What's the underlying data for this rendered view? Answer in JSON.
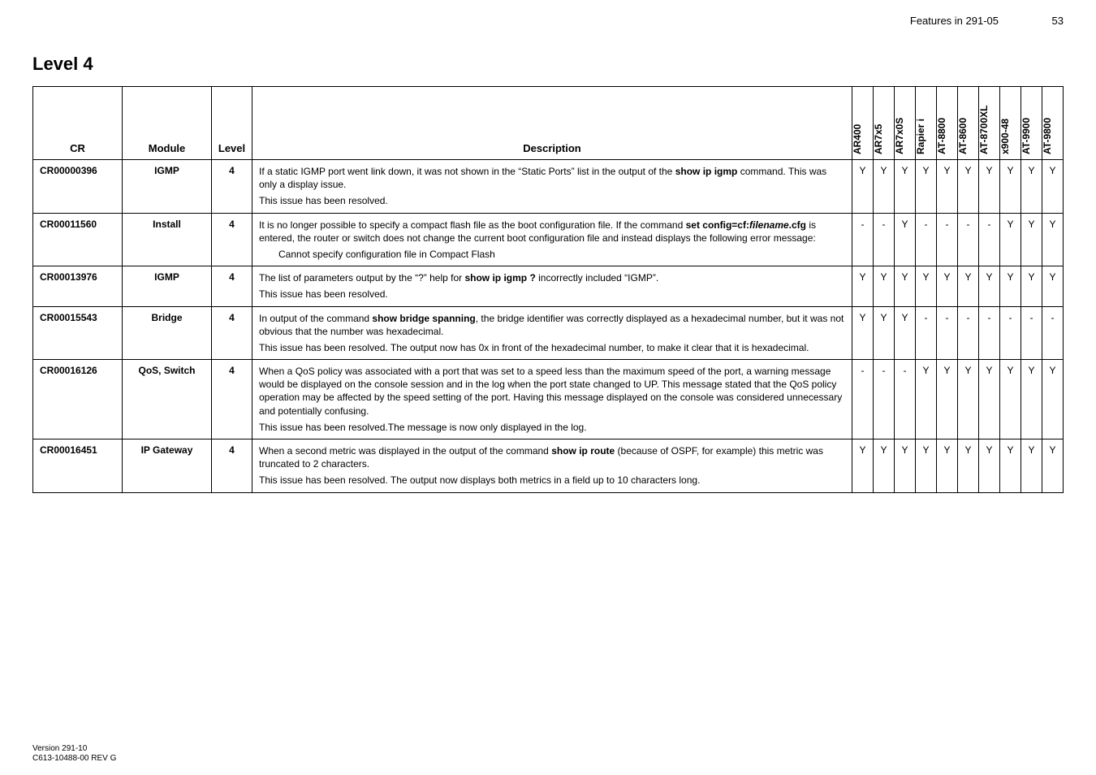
{
  "header": {
    "running_head": "Features in 291-05",
    "page_number": "53"
  },
  "section_title": "Level 4",
  "columns": {
    "cr": "CR",
    "module": "Module",
    "level": "Level",
    "description": "Description",
    "flags": [
      "AR400",
      "AR7x5",
      "AR7x0S",
      "Rapier i",
      "AT-8800",
      "AT-8600",
      "AT-8700XL",
      "x900-48",
      "AT-9900",
      "AT-9800"
    ]
  },
  "rows": [
    {
      "cr": "CR00000396",
      "module": "IGMP",
      "level": "4",
      "desc_paras": [
        "If a static IGMP port went link down, it was not shown in the “Static Ports” list in the output of the <b>show ip igmp</b> command. This was only a display issue.",
        "This issue has been resolved."
      ],
      "flags": [
        "Y",
        "Y",
        "Y",
        "Y",
        "Y",
        "Y",
        "Y",
        "Y",
        "Y",
        "Y"
      ]
    },
    {
      "cr": "CR00011560",
      "module": "Install",
      "level": "4",
      "desc_paras": [
        "It is no longer possible to specify a compact flash file as the boot configuration file. If the command <b>set config=cf:<i>filename</i>.cfg</b> is entered, the router or switch does not change the current boot configuration file and instead displays the following error message:",
        "<span class=\"indent\">Cannot specify configuration file in Compact Flash</span>"
      ],
      "flags": [
        "-",
        "-",
        "Y",
        "-",
        "-",
        "-",
        "-",
        "Y",
        "Y",
        "Y"
      ]
    },
    {
      "cr": "CR00013976",
      "module": "IGMP",
      "level": "4",
      "desc_paras": [
        "The list of parameters output by the “?” help for <b>show ip igmp ?</b> incorrectly included “IGMP”.",
        "This issue has been resolved."
      ],
      "flags": [
        "Y",
        "Y",
        "Y",
        "Y",
        "Y",
        "Y",
        "Y",
        "Y",
        "Y",
        "Y"
      ]
    },
    {
      "cr": "CR00015543",
      "module": "Bridge",
      "level": "4",
      "desc_paras": [
        "In output of the command <b>show bridge spanning</b>, the bridge identifier was correctly displayed as a hexadecimal number, but it was not obvious that the number was hexadecimal.",
        "This issue has been resolved. The output now has 0x in front of the hexadecimal number, to make it clear that it is hexadecimal."
      ],
      "flags": [
        "Y",
        "Y",
        "Y",
        "-",
        "-",
        "-",
        "-",
        "-",
        "-",
        "-"
      ]
    },
    {
      "cr": "CR00016126",
      "module": "QoS, Switch",
      "level": "4",
      "desc_paras": [
        "When a QoS policy was associated with a port that was set to a speed less than the maximum speed of the port, a warning message would be displayed on the console session and in the log when the port state changed to UP. This message stated that the QoS policy operation may be affected by the speed setting of the port. Having this message displayed on the console was considered unnecessary and potentially confusing.",
        "This issue has been resolved.The message is now only displayed in the log."
      ],
      "flags": [
        "-",
        "-",
        "-",
        "Y",
        "Y",
        "Y",
        "Y",
        "Y",
        "Y",
        "Y"
      ]
    },
    {
      "cr": "CR00016451",
      "module": "IP Gateway",
      "level": "4",
      "desc_paras": [
        "When a second metric was displayed in the output of the command <b>show ip route</b> (because of OSPF, for example) this metric was truncated to 2 characters.",
        "This issue has been resolved. The output now displays both metrics in a field up to 10 characters long."
      ],
      "flags": [
        "Y",
        "Y",
        "Y",
        "Y",
        "Y",
        "Y",
        "Y",
        "Y",
        "Y",
        "Y"
      ]
    }
  ],
  "footer": {
    "line1": "Version 291-10",
    "line2": "C613-10488-00 REV G"
  }
}
